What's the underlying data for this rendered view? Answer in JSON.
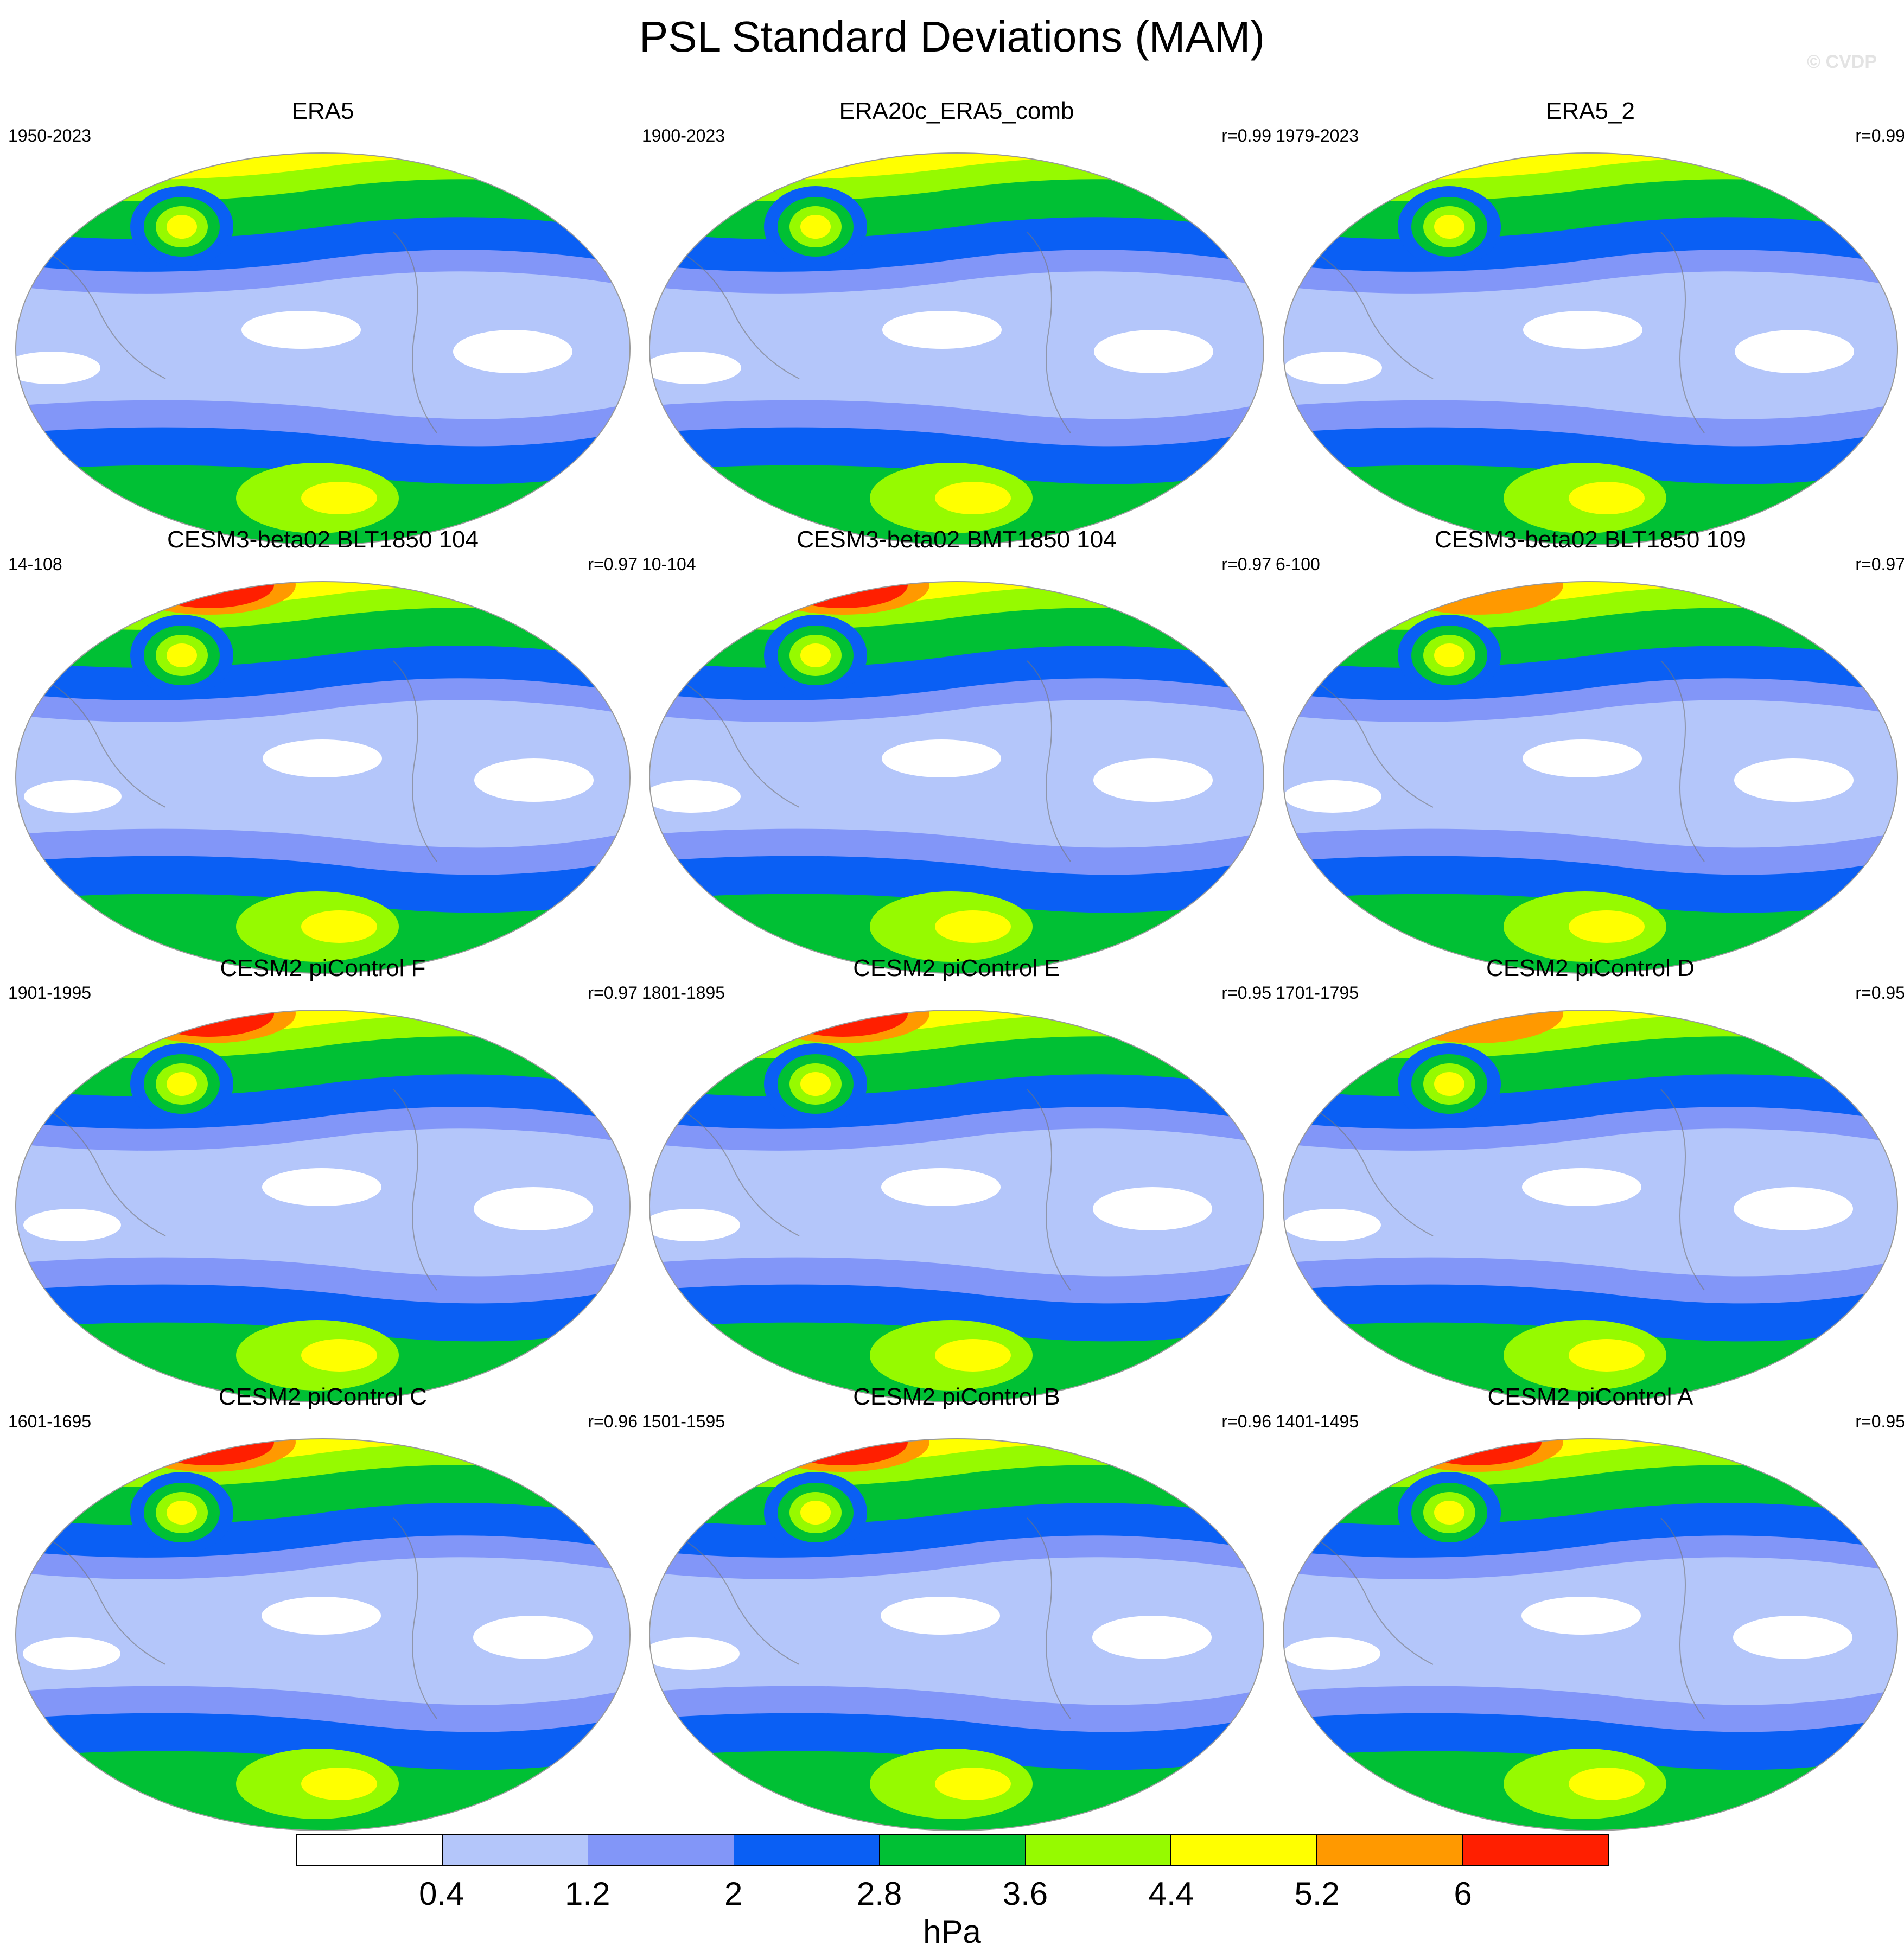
{
  "title": "PSL Standard Deviations (MAM)",
  "credit": "© CVDP",
  "units": "hPa",
  "colorbar": {
    "colors": [
      "#ffffff",
      "#b4c6fa",
      "#8296f8",
      "#0a5ff4",
      "#00c034",
      "#96fa00",
      "#ffff00",
      "#ff9900",
      "#ff1f00"
    ],
    "labels": [
      "0.4",
      "1.2",
      "2",
      "2.8",
      "3.6",
      "4.4",
      "5.2",
      "6"
    ]
  },
  "panels": [
    {
      "title": "ERA5",
      "period": "1950-2023",
      "corr": "",
      "max_level": 6
    },
    {
      "title": "ERA20c_ERA5_comb",
      "period": "1900-2023",
      "corr": "r=0.99",
      "max_level": 6
    },
    {
      "title": "ERA5_2",
      "period": "1979-2023",
      "corr": "r=0.99",
      "max_level": 6
    },
    {
      "title": "CESM3-beta02 BLT1850 104",
      "period": "14-108",
      "corr": "r=0.97",
      "max_level": 8
    },
    {
      "title": "CESM3-beta02 BMT1850 104",
      "period": "10-104",
      "corr": "r=0.97",
      "max_level": 8
    },
    {
      "title": "CESM3-beta02 BLT1850 109",
      "period": "6-100",
      "corr": "r=0.97",
      "max_level": 7
    },
    {
      "title": "CESM2 piControl F",
      "period": "1901-1995",
      "corr": "r=0.97",
      "max_level": 8
    },
    {
      "title": "CESM2 piControl E",
      "period": "1801-1895",
      "corr": "r=0.95",
      "max_level": 8
    },
    {
      "title": "CESM2 piControl D",
      "period": "1701-1795",
      "corr": "r=0.95",
      "max_level": 7
    },
    {
      "title": "CESM2 piControl C",
      "period": "1601-1695",
      "corr": "r=0.96",
      "max_level": 8
    },
    {
      "title": "CESM2 piControl B",
      "period": "1501-1595",
      "corr": "r=0.96",
      "max_level": 8
    },
    {
      "title": "CESM2 piControl A",
      "period": "1401-1495",
      "corr": "r=0.95",
      "max_level": 8
    }
  ]
}
